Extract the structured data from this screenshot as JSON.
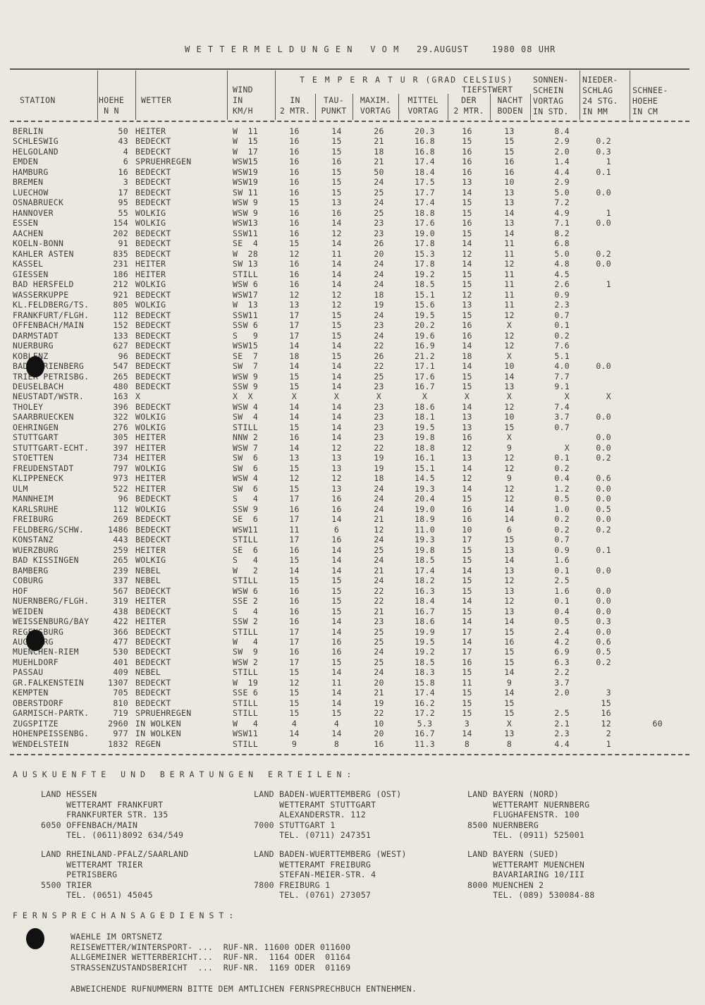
{
  "title": "W E T T E R M E L D U N G E N   V O M   29.AUGUST    1980 08 UHR",
  "headers": {
    "station": "STATION",
    "hoehe1": "HOEHE",
    "hoehe2": "N N",
    "wetter": "WETTER",
    "wind1": "WIND",
    "wind2": "IN",
    "wind3": "KM/H",
    "temp": "T E M P E R A T U R (GRAD CELSIUS)",
    "in1": "IN",
    "in2": "2 MTR.",
    "tau1": "TAU-",
    "tau2": "PUNKT",
    "max1": "MAXIM.",
    "max2": "VORTAG",
    "mit1": "MITTEL",
    "mit2": "VORTAG",
    "tief": "TIEFSTWERT",
    "der1": "DER",
    "der2": "2 MTR.",
    "nacht1": "NACHT",
    "nacht2": "BODEN",
    "son1": "SONNEN-",
    "son2": "SCHEIN",
    "son3": "VORTAG",
    "son4": "IN STD.",
    "nie1": "NIEDER-",
    "nie2": "SCHLAG",
    "nie3": "24 STG.",
    "nie4": "IN MM",
    "sch1": "SCHNEE-",
    "sch2": "HOEHE",
    "sch3": "IN CM"
  },
  "rows": [
    [
      "BERLIN",
      "50",
      "HEITER",
      "W  11",
      "16",
      "14",
      "26",
      "20.3",
      "16",
      "13",
      "8.4",
      "",
      ""
    ],
    [
      "SCHLESWIG",
      "43",
      "BEDECKT",
      "W  15",
      "16",
      "15",
      "21",
      "16.8",
      "15",
      "15",
      "2.9",
      "0.2",
      ""
    ],
    [
      "HELGOLAND",
      "4",
      "BEDECKT",
      "W  17",
      "16",
      "15",
      "18",
      "16.8",
      "16",
      "15",
      "2.0",
      "0.3",
      ""
    ],
    [
      "EMDEN",
      "6",
      "SPRUEHREGEN",
      "WSW15",
      "16",
      "16",
      "21",
      "17.4",
      "16",
      "16",
      "1.4",
      "1",
      ""
    ],
    [
      "HAMBURG",
      "16",
      "BEDECKT",
      "WSW19",
      "16",
      "15",
      "50",
      "18.4",
      "16",
      "16",
      "4.4",
      "0.1",
      ""
    ],
    [
      "BREMEN",
      "3",
      "BEDECKT",
      "WSW19",
      "16",
      "15",
      "24",
      "17.5",
      "13",
      "10",
      "2.9",
      "",
      ""
    ],
    [
      "LUECHOW",
      "17",
      "BEDECKT",
      "SW 11",
      "16",
      "15",
      "25",
      "17.7",
      "14",
      "13",
      "5.0",
      "0.0",
      ""
    ],
    [
      "OSNABRUECK",
      "95",
      "BEDECKT",
      "WSW 9",
      "15",
      "13",
      "24",
      "17.4",
      "15",
      "13",
      "7.2",
      "",
      ""
    ],
    [
      "HANNOVER",
      "55",
      "WOLKIG",
      "WSW 9",
      "16",
      "16",
      "25",
      "18.8",
      "15",
      "14",
      "4.9",
      "1",
      ""
    ],
    [
      "ESSEN",
      "154",
      "WOLKIG",
      "WSW13",
      "16",
      "14",
      "23",
      "17.6",
      "16",
      "13",
      "7.1",
      "0.0",
      ""
    ],
    [
      "AACHEN",
      "202",
      "BEDECKT",
      "SSW11",
      "16",
      "12",
      "23",
      "19.0",
      "15",
      "14",
      "8.2",
      "",
      ""
    ],
    [
      "KOELN-BONN",
      "91",
      "BEDECKT",
      "SE  4",
      "15",
      "14",
      "26",
      "17.8",
      "14",
      "11",
      "6.8",
      "",
      ""
    ],
    [
      "KAHLER ASTEN",
      "835",
      "BEDECKT",
      "W  28",
      "12",
      "11",
      "20",
      "15.3",
      "12",
      "11",
      "5.0",
      "0.2",
      ""
    ],
    [
      "KASSEL",
      "231",
      "HEITER",
      "SW 13",
      "16",
      "14",
      "24",
      "17.8",
      "14",
      "12",
      "4.8",
      "0.0",
      ""
    ],
    [
      "GIESSEN",
      "186",
      "HEITER",
      "STILL",
      "16",
      "14",
      "24",
      "19.2",
      "15",
      "11",
      "4.5",
      "",
      ""
    ],
    [
      "BAD HERSFELD",
      "212",
      "WOLKIG",
      "WSW 6",
      "16",
      "14",
      "24",
      "18.5",
      "15",
      "11",
      "2.6",
      "1",
      ""
    ],
    [
      "WASSERKUPPE",
      "921",
      "BEDECKT",
      "WSW17",
      "12",
      "12",
      "18",
      "15.1",
      "12",
      "11",
      "0.9",
      "",
      ""
    ],
    [
      "KL.FELDBERG/TS.",
      "805",
      "WOLKIG",
      "W  13",
      "13",
      "12",
      "19",
      "15.6",
      "13",
      "11",
      "2.3",
      "",
      ""
    ],
    [
      "FRANKFURT/FLGH.",
      "112",
      "BEDECKT",
      "SSW11",
      "17",
      "15",
      "24",
      "19.5",
      "15",
      "12",
      "0.7",
      "",
      ""
    ],
    [
      "OFFENBACH/MAIN",
      "152",
      "BEDECKT",
      "SSW 6",
      "17",
      "15",
      "23",
      "20.2",
      "16",
      "X",
      "0.1",
      "",
      ""
    ],
    [
      "DARMSTADT",
      "133",
      "BEDECKT",
      "S   9",
      "17",
      "15",
      "24",
      "19.6",
      "16",
      "12",
      "0.2",
      "",
      ""
    ],
    [
      "NUERBURG",
      "627",
      "BEDECKT",
      "WSW15",
      "14",
      "14",
      "22",
      "16.9",
      "14",
      "12",
      "7.6",
      "",
      ""
    ],
    [
      "KOBLENZ",
      "96",
      "BEDECKT",
      "SE  7",
      "18",
      "15",
      "26",
      "21.2",
      "18",
      "X",
      "5.1",
      "",
      ""
    ],
    [
      "BAD MARIENBERG",
      "547",
      "BEDECKT",
      "SW  7",
      "14",
      "14",
      "22",
      "17.1",
      "14",
      "10",
      "4.0",
      "0.0",
      ""
    ],
    [
      "TRIER PETRISBG.",
      "265",
      "BEDECKT",
      "WSW 9",
      "15",
      "14",
      "25",
      "17.6",
      "15",
      "14",
      "7.7",
      "",
      ""
    ],
    [
      "DEUSELBACH",
      "480",
      "BEDECKT",
      "SSW 9",
      "15",
      "14",
      "23",
      "16.7",
      "15",
      "13",
      "9.1",
      "",
      ""
    ],
    [
      "NEUSTADT/WSTR.",
      "163",
      "X",
      "X  X",
      "X",
      "X",
      "X",
      "X",
      "X",
      "X",
      "X",
      "X",
      ""
    ],
    [
      "THOLEY",
      "396",
      "BEDECKT",
      "WSW 4",
      "14",
      "14",
      "23",
      "18.6",
      "14",
      "12",
      "7.4",
      "",
      ""
    ],
    [
      "SAARBRUECKEN",
      "322",
      "WOLKIG",
      "SW  4",
      "14",
      "14",
      "23",
      "18.1",
      "13",
      "10",
      "3.7",
      "0.0",
      ""
    ],
    [
      "OEHRINGEN",
      "276",
      "WOLKIG",
      "STILL",
      "15",
      "14",
      "23",
      "19.5",
      "13",
      "15",
      "0.7",
      "",
      ""
    ],
    [
      "STUTTGART",
      "305",
      "HEITER",
      "NNW 2",
      "16",
      "14",
      "23",
      "19.8",
      "16",
      "X",
      "",
      "0.0",
      ""
    ],
    [
      "STUTTGART-ECHT.",
      "397",
      "HEITER",
      "WSW 7",
      "14",
      "12",
      "22",
      "18.8",
      "12",
      "9",
      "X",
      "0.0",
      ""
    ],
    [
      "STOETTEN",
      "734",
      "HEITER",
      "SW  6",
      "13",
      "13",
      "19",
      "16.1",
      "13",
      "12",
      "0.1",
      "0.2",
      ""
    ],
    [
      "FREUDENSTADT",
      "797",
      "WOLKIG",
      "SW  6",
      "15",
      "13",
      "19",
      "15.1",
      "14",
      "12",
      "0.2",
      "",
      ""
    ],
    [
      "KLIPPENECK",
      "973",
      "HEITER",
      "WSW 4",
      "12",
      "12",
      "18",
      "14.5",
      "12",
      "9",
      "0.4",
      "0.6",
      ""
    ],
    [
      "ULM",
      "522",
      "HEITER",
      "SW  6",
      "15",
      "13",
      "24",
      "19.3",
      "14",
      "12",
      "1.2",
      "0.0",
      ""
    ],
    [
      "MANNHEIM",
      "96",
      "BEDECKT",
      "S   4",
      "17",
      "16",
      "24",
      "20.4",
      "15",
      "12",
      "0.5",
      "0.0",
      ""
    ],
    [
      "KARLSRUHE",
      "112",
      "WOLKIG",
      "SSW 9",
      "16",
      "16",
      "24",
      "19.0",
      "16",
      "14",
      "1.0",
      "0.5",
      ""
    ],
    [
      "FREIBURG",
      "269",
      "BEDECKT",
      "SE  6",
      "17",
      "14",
      "21",
      "18.9",
      "16",
      "14",
      "0.2",
      "0.0",
      ""
    ],
    [
      "FELDBERG/SCHW.",
      "1486",
      "BEDECKT",
      "WSW11",
      "11",
      "6",
      "12",
      "11.0",
      "10",
      "6",
      "0.2",
      "0.2",
      ""
    ],
    [
      "KONSTANZ",
      "443",
      "BEDECKT",
      "STILL",
      "17",
      "16",
      "24",
      "19.3",
      "17",
      "15",
      "0.7",
      "",
      ""
    ],
    [
      "WUERZBURG",
      "259",
      "HEITER",
      "SE  6",
      "16",
      "14",
      "25",
      "19.8",
      "15",
      "13",
      "0.9",
      "0.1",
      ""
    ],
    [
      "BAD KISSINGEN",
      "265",
      "WOLKIG",
      "S   4",
      "15",
      "14",
      "24",
      "18.5",
      "15",
      "14",
      "1.6",
      "",
      ""
    ],
    [
      "BAMBERG",
      "239",
      "NEBEL",
      "W   2",
      "14",
      "14",
      "21",
      "17.4",
      "14",
      "13",
      "0.1",
      "0.0",
      ""
    ],
    [
      "COBURG",
      "337",
      "NEBEL",
      "STILL",
      "15",
      "15",
      "24",
      "18.2",
      "15",
      "12",
      "2.5",
      "",
      ""
    ],
    [
      "HOF",
      "567",
      "BEDECKT",
      "WSW 6",
      "16",
      "15",
      "22",
      "16.3",
      "15",
      "13",
      "1.6",
      "0.0",
      ""
    ],
    [
      "NUERNBERG/FLGH.",
      "319",
      "HEITER",
      "SSE 2",
      "16",
      "15",
      "22",
      "18.4",
      "14",
      "12",
      "0.1",
      "0.0",
      ""
    ],
    [
      "WEIDEN",
      "438",
      "BEDECKT",
      "S   4",
      "16",
      "15",
      "21",
      "16.7",
      "15",
      "13",
      "0.4",
      "0.0",
      ""
    ],
    [
      "WEISSENBURG/BAY",
      "422",
      "HEITER",
      "SSW 2",
      "16",
      "14",
      "23",
      "18.6",
      "14",
      "14",
      "0.5",
      "0.3",
      ""
    ],
    [
      "REGENSBURG",
      "366",
      "BEDECKT",
      "STILL",
      "17",
      "14",
      "25",
      "19.9",
      "17",
      "15",
      "2.4",
      "0.0",
      ""
    ],
    [
      "AUGSBURG",
      "477",
      "BEDECKT",
      "W   4",
      "17",
      "16",
      "25",
      "19.5",
      "14",
      "16",
      "4.2",
      "0.6",
      ""
    ],
    [
      "MUENCHEN-RIEM",
      "530",
      "BEDECKT",
      "SW  9",
      "16",
      "16",
      "24",
      "19.2",
      "17",
      "15",
      "6.9",
      "0.5",
      ""
    ],
    [
      "MUEHLDORF",
      "401",
      "BEDECKT",
      "WSW 2",
      "17",
      "15",
      "25",
      "18.5",
      "16",
      "15",
      "6.3",
      "0.2",
      ""
    ],
    [
      "PASSAU",
      "409",
      "NEBEL",
      "STILL",
      "15",
      "14",
      "24",
      "18.3",
      "15",
      "14",
      "2.2",
      "",
      ""
    ],
    [
      "GR.FALKENSTEIN",
      "1307",
      "BEDECKT",
      "W  19",
      "12",
      "11",
      "20",
      "15.8",
      "11",
      "9",
      "3.7",
      "",
      ""
    ],
    [
      "KEMPTEN",
      "705",
      "BEDECKT",
      "SSE 6",
      "15",
      "14",
      "21",
      "17.4",
      "15",
      "14",
      "2.0",
      "3",
      ""
    ],
    [
      "OBERSTDORF",
      "810",
      "BEDECKT",
      "STILL",
      "15",
      "14",
      "19",
      "16.2",
      "15",
      "15",
      "",
      "15",
      ""
    ],
    [
      "GARMISCH-PARTK.",
      "719",
      "SPRUEHREGEN",
      "STILL",
      "15",
      "15",
      "22",
      "17.2",
      "15",
      "15",
      "2.5",
      "16",
      ""
    ],
    [
      "ZUGSPITZE",
      "2960",
      "IN WOLKEN",
      "W   4",
      "4",
      "4",
      "10",
      "5.3",
      "3",
      "X",
      "2.1",
      "12",
      "60"
    ],
    [
      "HOHENPEISSENBG.",
      "977",
      "IN WOLKEN",
      "WSW11",
      "14",
      "14",
      "20",
      "16.7",
      "14",
      "13",
      "2.3",
      "2",
      ""
    ],
    [
      "WENDELSTEIN",
      "1832",
      "REGEN",
      "STILL",
      "9",
      "8",
      "16",
      "11.3",
      "8",
      "8",
      "4.4",
      "1",
      ""
    ]
  ],
  "auskunft": {
    "heading": "AUSKUENFTE UND BERATUNGEN ERTEILEN:",
    "blocks": [
      [
        "LAND HESSEN",
        "     WETTERAMT FRANKFURT",
        "     FRANKFURTER STR. 135",
        "6050 OFFENBACH/MAIN",
        "     TEL. (0611)8092 634/549"
      ],
      [
        "LAND BADEN-WUERTTEMBERG (OST)",
        "     WETTERAMT STUTTGART",
        "     ALEXANDERSTR. 112",
        "7000 STUTTGART 1",
        "     TEL. (0711) 247351"
      ],
      [
        "LAND BAYERN (NORD)",
        "     WETTERAMT NUERNBERG",
        "     FLUGHAFENSTR. 100",
        "8500 NUERNBERG",
        "     TEL. (0911) 525001"
      ],
      [
        "LAND RHEINLAND-PFALZ/SAARLAND",
        "     WETTERAMT TRIER",
        "     PETRISBERG",
        "5500 TRIER",
        "     TEL. (0651) 45045"
      ],
      [
        "LAND BADEN-WUERTTEMBERG (WEST)",
        "     WETTERAMT FREIBURG",
        "     STEFAN-MEIER-STR. 4",
        "7800 FREIBURG 1",
        "     TEL. (0761) 273057"
      ],
      [
        "LAND BAYERN (SUED)",
        "     WETTERAMT MUENCHEN",
        "     BAVARIARING 10/III",
        "8000 MUENCHEN 2",
        "     TEL. (089) 530084-88"
      ]
    ]
  },
  "fernsprech": {
    "heading": "FERNSPRECHANSAGEDIENST:",
    "lines": [
      "WAEHLE IM ORTSNETZ",
      "REISEWETTER/WINTERSPORT- ...  RUF-NR. 11600 ODER 011600",
      "ALLGEMEINER WETTERBERICHT...  RUF-NR.  1164 ODER  01164",
      "STRASSENZUSTANDSBERICHT  ...  RUF-NR.  1169 ODER  01169"
    ],
    "footer": "ABWEICHENDE RUFNUMMERN BITTE DEM AMTLICHEN FERNSPRECHBUCH ENTNEHMEN."
  }
}
